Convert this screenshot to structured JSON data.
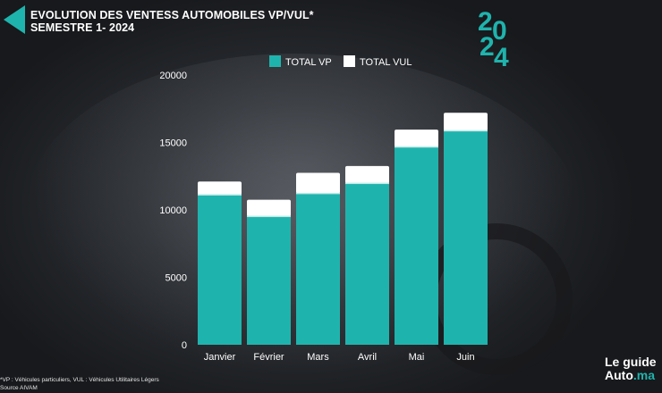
{
  "header": {
    "title_line1": "EVOLUTION DES VENTESS  AUTOMOBILES VP/VUL*",
    "title_line2": "SEMESTRE 1-  2024",
    "year_digits": [
      "2",
      "0",
      "2",
      "4"
    ]
  },
  "footnote": {
    "line1": "*VP : Véhicules particuliers, VUL : Véhicules Utilitaires Légers",
    "line2": "Source AIVAM"
  },
  "brand": {
    "line1": "Le guide",
    "line2_main": "Auto",
    "line2_accent": ".ma"
  },
  "colors": {
    "vp": "#1fb3ad",
    "vul": "#ffffff",
    "accent": "#1fb3ad"
  },
  "chart_data": {
    "type": "bar",
    "stacked": true,
    "categories": [
      "Janvier",
      "Février",
      "Mars",
      "Avril",
      "Mai",
      "Juin"
    ],
    "series": [
      {
        "name": "TOTAL VP",
        "values": [
          11100,
          9500,
          11200,
          11950,
          14650,
          15850
        ]
      },
      {
        "name": "TOTAL VUL",
        "values": [
          1000,
          1250,
          1550,
          1300,
          1300,
          1350
        ]
      }
    ],
    "yticks": [
      0,
      5000,
      10000,
      15000,
      20000
    ],
    "ylim": [
      0,
      20000
    ],
    "grid": false,
    "legend_position": "top"
  }
}
